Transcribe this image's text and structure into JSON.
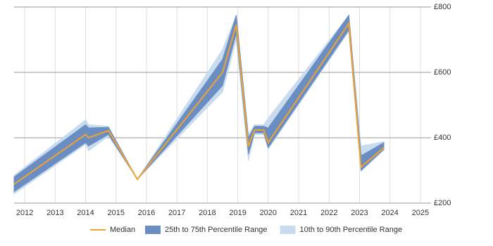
{
  "chart_data": {
    "type": "line",
    "x": [
      2011.65,
      2014.0,
      2014.1,
      2014.75,
      2015.7,
      2018.5,
      2018.95,
      2019.35,
      2019.55,
      2019.85,
      2020.0,
      2022.65,
      2023.05,
      2023.8
    ],
    "series": [
      {
        "name": "Median",
        "color": "#f0a22e",
        "values": [
          258,
          410,
          400,
          422,
          273,
          600,
          746,
          374,
          424,
          424,
          385,
          750,
          310,
          370
        ]
      }
    ],
    "bands": [
      {
        "name": "10th to 90th Percentile Range",
        "color": "#c9dbee",
        "lower": [
          228,
          380,
          360,
          405,
          273,
          540,
          700,
          330,
          410,
          410,
          365,
          725,
          298,
          362
        ],
        "upper": [
          285,
          455,
          440,
          435,
          273,
          670,
          775,
          410,
          440,
          440,
          460,
          775,
          375,
          388
        ]
      },
      {
        "name": "25th to 75th Percentile Range",
        "color": "#6a8ec2",
        "lower": [
          235,
          385,
          375,
          410,
          273,
          560,
          720,
          350,
          415,
          415,
          370,
          730,
          300,
          365
        ],
        "upper": [
          280,
          440,
          430,
          432,
          273,
          640,
          775,
          400,
          435,
          435,
          430,
          775,
          345,
          385
        ]
      }
    ],
    "xlim": [
      2011.65,
      2025.35
    ],
    "xticks": [
      2012,
      2013,
      2014,
      2015,
      2016,
      2017,
      2018,
      2019,
      2020,
      2021,
      2022,
      2023,
      2024,
      2025
    ],
    "ylim": [
      200,
      800
    ],
    "yticks": [
      {
        "value": 200,
        "label": "£200"
      },
      {
        "value": 400,
        "label": "£400"
      },
      {
        "value": 600,
        "label": "£600"
      },
      {
        "value": 800,
        "label": "£800"
      }
    ],
    "grid": true
  }
}
